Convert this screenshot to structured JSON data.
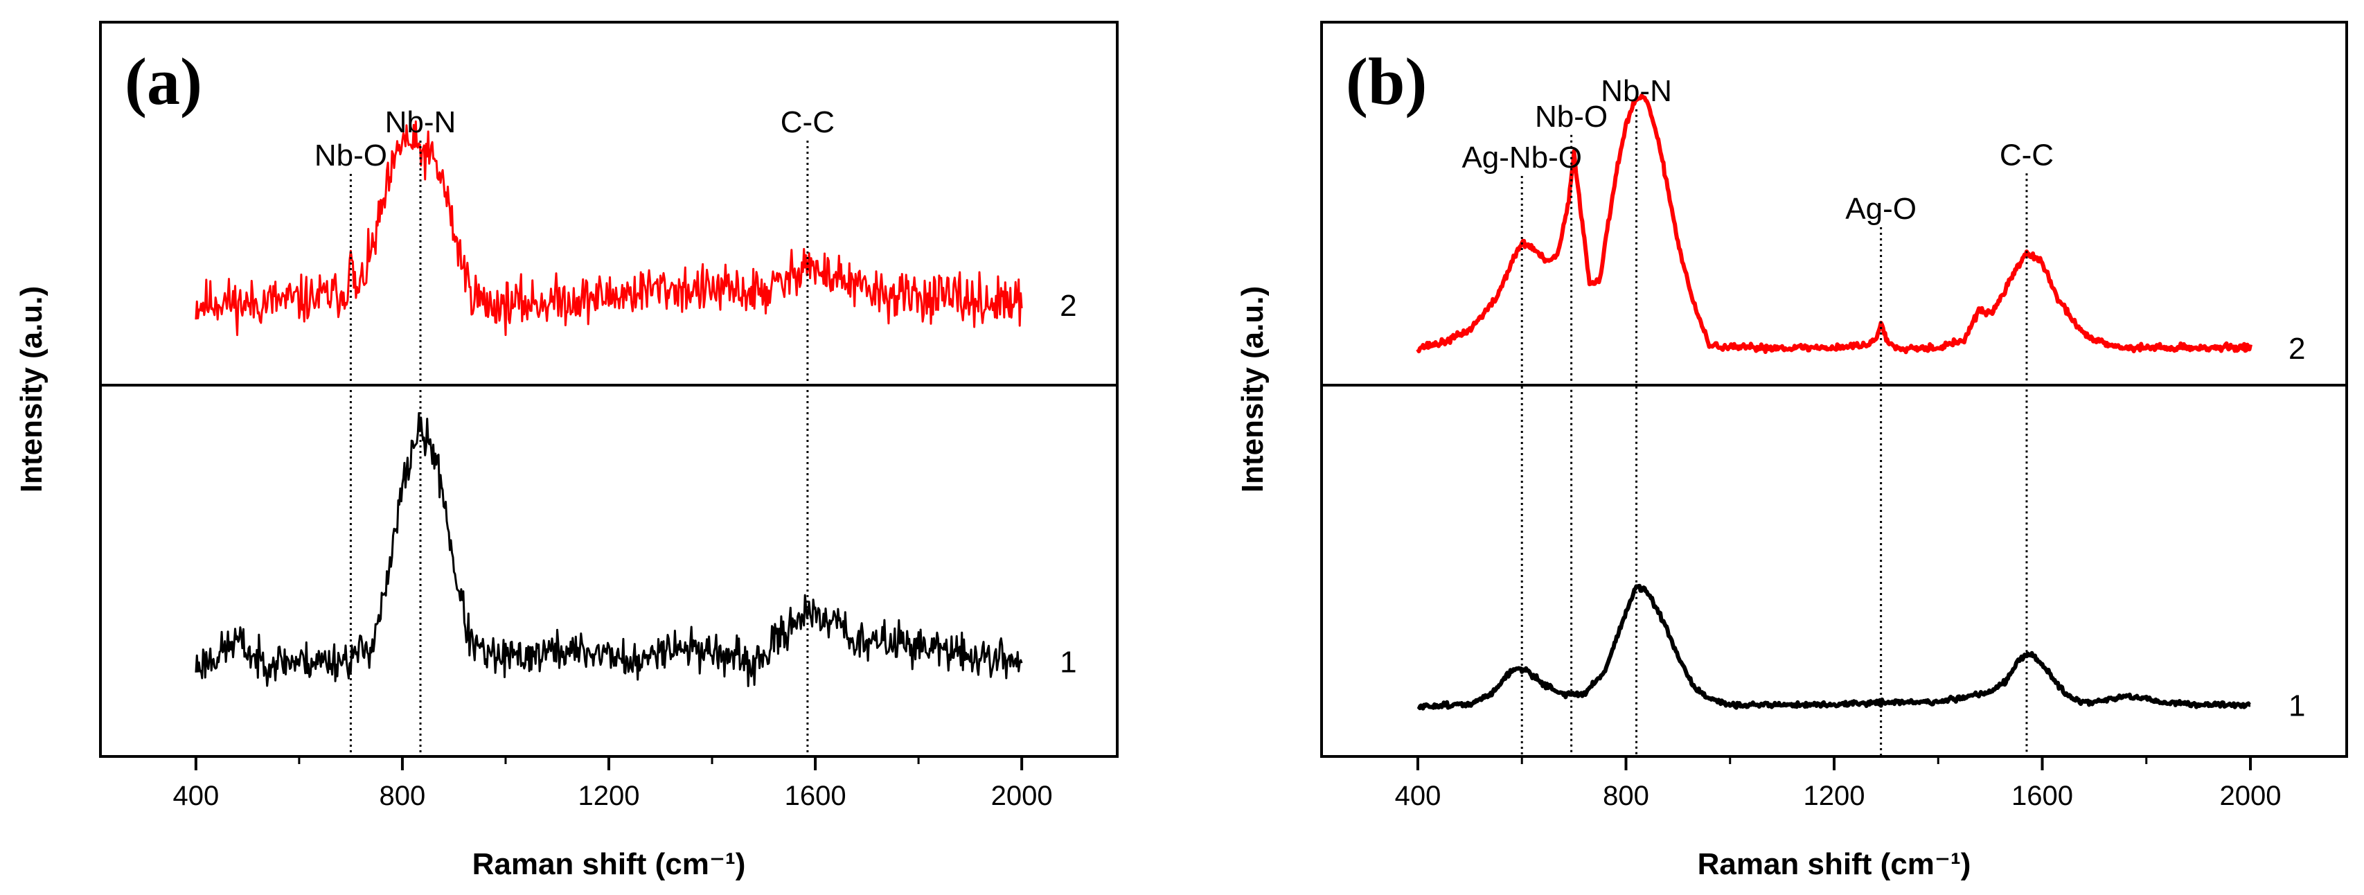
{
  "chart_data": [
    {
      "type": "line",
      "panel_label": "(a)",
      "xlabel": "Raman shift (cm⁻¹)",
      "ylabel": "Intensity (a.u.)",
      "xlim": [
        215,
        2185
      ],
      "xticks": [
        400,
        800,
        1200,
        1600,
        2000
      ],
      "xtick_labels": [
        "400",
        "800",
        "1200",
        "1600",
        "2000"
      ],
      "yticks_shown": false,
      "divider_line": true,
      "series": [
        {
          "name": "2",
          "color": "#ff0000",
          "offset": "upper",
          "noise": 0.07,
          "seed": 11,
          "x": [
            400,
            450,
            500,
            550,
            600,
            650,
            690,
            700,
            712,
            740,
            770,
            800,
            830,
            860,
            880,
            900,
            930,
            960,
            1000,
            1100,
            1200,
            1300,
            1400,
            1500,
            1550,
            1580,
            1610,
            1640,
            1680,
            1750,
            1800,
            1900,
            2000
          ],
          "y": [
            0.2,
            0.22,
            0.2,
            0.22,
            0.22,
            0.24,
            0.26,
            0.4,
            0.24,
            0.45,
            0.75,
            1.0,
            0.95,
            0.9,
            0.78,
            0.55,
            0.28,
            0.2,
            0.2,
            0.22,
            0.24,
            0.28,
            0.27,
            0.26,
            0.32,
            0.42,
            0.34,
            0.34,
            0.28,
            0.24,
            0.24,
            0.22,
            0.2
          ]
        },
        {
          "name": "1",
          "color": "#000000",
          "offset": "lower",
          "noise": 0.045,
          "seed": 23,
          "x": [
            400,
            440,
            480,
            520,
            560,
            600,
            650,
            700,
            740,
            770,
            800,
            830,
            860,
            880,
            900,
            930,
            960,
            1000,
            1100,
            1200,
            1260,
            1300,
            1400,
            1480,
            1520,
            1560,
            1580,
            1610,
            1640,
            1680,
            1750,
            1800,
            1900,
            2000
          ],
          "y": [
            0.1,
            0.14,
            0.2,
            0.12,
            0.12,
            0.12,
            0.12,
            0.13,
            0.18,
            0.4,
            0.78,
            1.0,
            0.92,
            0.75,
            0.48,
            0.2,
            0.14,
            0.13,
            0.16,
            0.15,
            0.1,
            0.18,
            0.16,
            0.1,
            0.18,
            0.28,
            0.31,
            0.26,
            0.3,
            0.18,
            0.2,
            0.18,
            0.14,
            0.12
          ]
        }
      ],
      "peak_markers": [
        {
          "label": "Nb-O",
          "x": 700,
          "top": 0.83
        },
        {
          "label": "Nb-N",
          "x": 835,
          "top": 0.99
        },
        {
          "label": "C-C",
          "x": 1585,
          "top": 0.99
        }
      ]
    },
    {
      "type": "line",
      "panel_label": "(b)",
      "xlabel": "Raman shift (cm⁻¹)",
      "ylabel": "Intensity (a.u.)",
      "xlim": [
        215,
        2185
      ],
      "xticks": [
        400,
        800,
        1200,
        1600,
        2000
      ],
      "xtick_labels": [
        "400",
        "800",
        "1200",
        "1600",
        "2000"
      ],
      "yticks_shown": false,
      "divider_line": true,
      "series": [
        {
          "name": "2",
          "color": "#ff0000",
          "offset": "upper",
          "noise": 0.008,
          "seed": 37,
          "x": [
            400,
            450,
            500,
            550,
            580,
            600,
            620,
            650,
            670,
            690,
            700,
            710,
            730,
            750,
            780,
            800,
            820,
            840,
            860,
            880,
            900,
            930,
            960,
            1000,
            1100,
            1200,
            1260,
            1280,
            1290,
            1300,
            1320,
            1400,
            1450,
            1480,
            1500,
            1520,
            1550,
            1570,
            1600,
            1630,
            1680,
            1750,
            1800,
            1900,
            2000
          ],
          "y": [
            0.03,
            0.05,
            0.1,
            0.22,
            0.36,
            0.44,
            0.42,
            0.36,
            0.4,
            0.6,
            0.79,
            0.62,
            0.28,
            0.3,
            0.7,
            0.9,
            1.0,
            1.0,
            0.85,
            0.66,
            0.44,
            0.2,
            0.04,
            0.03,
            0.03,
            0.03,
            0.04,
            0.06,
            0.13,
            0.06,
            0.03,
            0.03,
            0.06,
            0.18,
            0.16,
            0.22,
            0.34,
            0.4,
            0.36,
            0.22,
            0.08,
            0.03,
            0.03,
            0.03,
            0.03
          ]
        },
        {
          "name": "1",
          "color": "#000000",
          "offset": "lower",
          "noise": 0.006,
          "seed": 51,
          "x": [
            400,
            450,
            500,
            540,
            570,
            590,
            610,
            640,
            680,
            720,
            760,
            790,
            820,
            840,
            860,
            880,
            900,
            930,
            960,
            1000,
            1100,
            1200,
            1300,
            1400,
            1450,
            1500,
            1530,
            1560,
            1580,
            1610,
            1640,
            1670,
            1700,
            1750,
            1780,
            1820,
            1900,
            2000
          ],
          "y": [
            0.01,
            0.02,
            0.02,
            0.06,
            0.13,
            0.16,
            0.15,
            0.1,
            0.06,
            0.06,
            0.15,
            0.32,
            0.47,
            0.45,
            0.38,
            0.3,
            0.2,
            0.09,
            0.04,
            0.02,
            0.02,
            0.02,
            0.03,
            0.03,
            0.05,
            0.07,
            0.11,
            0.2,
            0.21,
            0.15,
            0.07,
            0.03,
            0.03,
            0.05,
            0.05,
            0.03,
            0.02,
            0.02
          ]
        }
      ],
      "peak_markers": [
        {
          "label": "Ag-Nb-O",
          "x": 600,
          "top": 0.7
        },
        {
          "label": "Nb-O",
          "x": 695,
          "top": 0.86
        },
        {
          "label": "Nb-N",
          "x": 820,
          "top": 0.96
        },
        {
          "label": "Ag-O",
          "x": 1290,
          "top": 0.5
        },
        {
          "label": "C-C",
          "x": 1570,
          "top": 0.71
        }
      ]
    }
  ]
}
